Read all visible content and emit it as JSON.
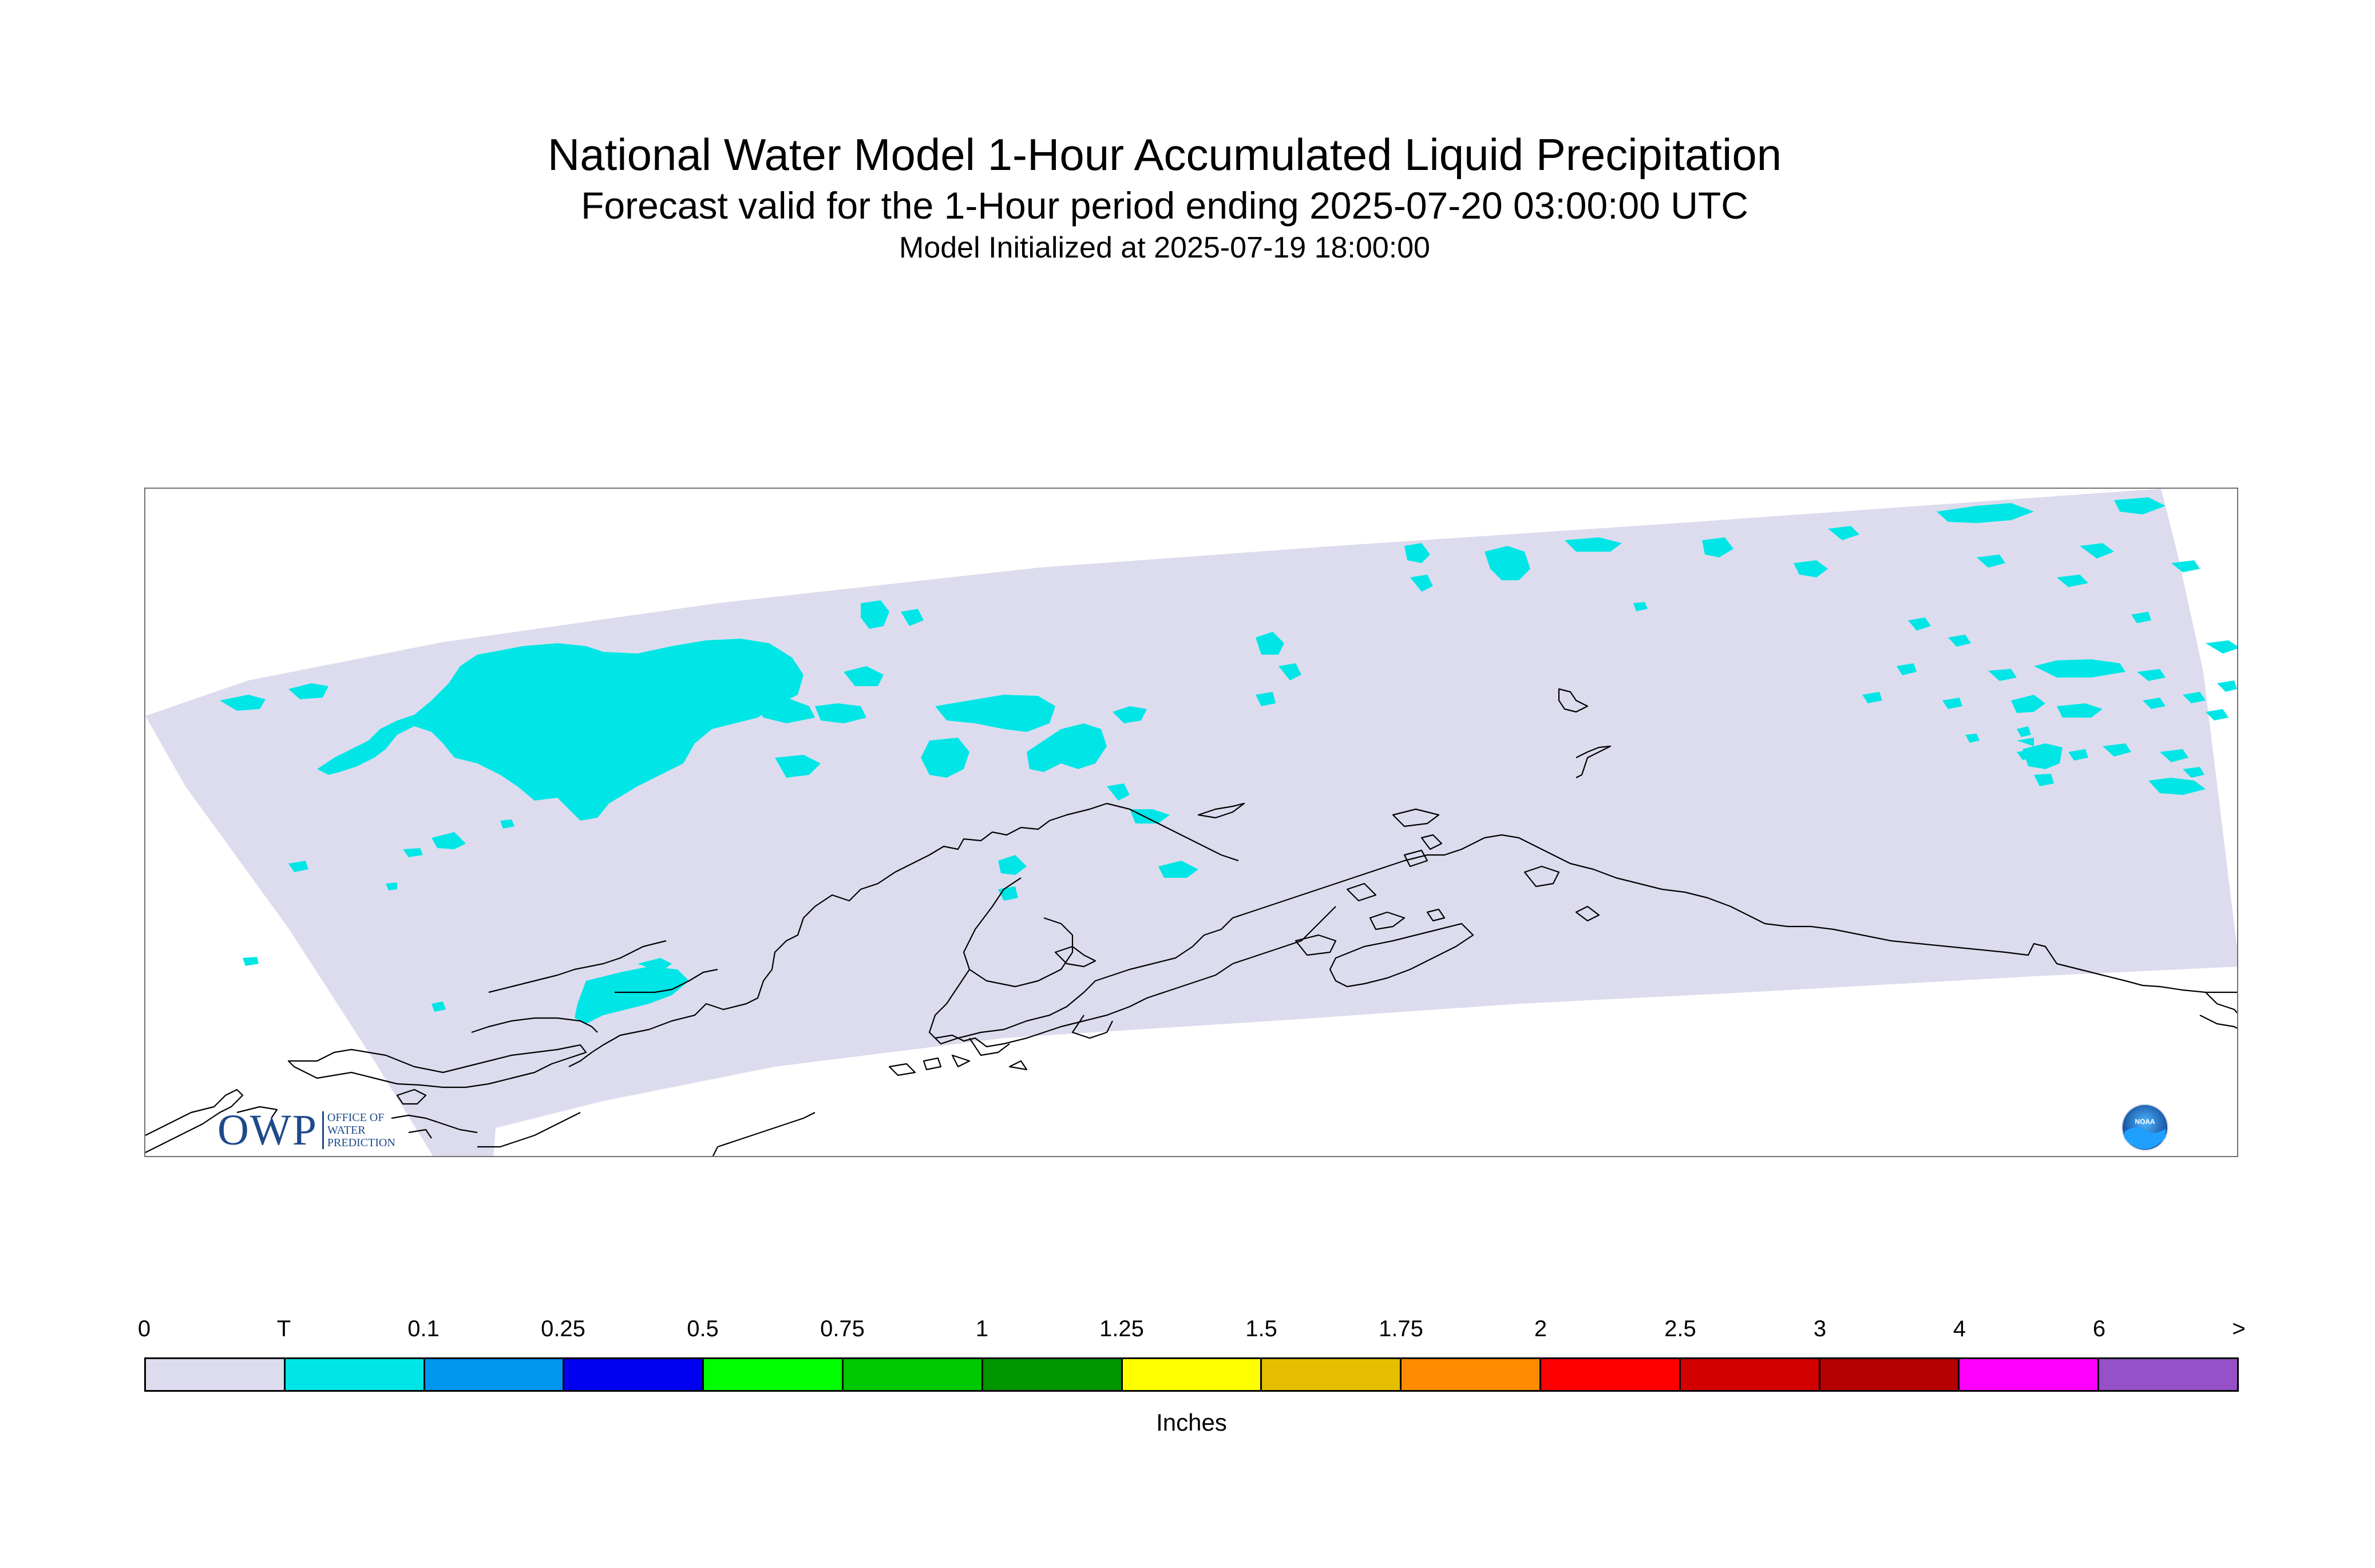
{
  "title": {
    "line1": "National Water Model 1-Hour Accumulated Liquid Precipitation",
    "line2": "Forecast valid for the 1-Hour period ending 2025-07-20 03:00:00 UTC",
    "line3": "Model Initialized at 2025-07-19 18:00:00"
  },
  "map": {
    "region": "Alaska",
    "domain_fill_color": "#dcdcee",
    "precip_color_trace": "#00e6e6",
    "coastline_color": "#000000"
  },
  "legend": {
    "unit": "Inches",
    "ticks": [
      "0",
      "T",
      "0.1",
      "0.25",
      "0.5",
      "0.75",
      "1",
      "1.25",
      "1.5",
      "1.75",
      "2",
      "2.5",
      "3",
      "4",
      "6",
      ">"
    ],
    "colors": [
      "#dcdcee",
      "#00e6e6",
      "#0096f0",
      "#0000f0",
      "#00ff00",
      "#00c800",
      "#009600",
      "#ffff00",
      "#e6be00",
      "#ff8c00",
      "#ff0000",
      "#d20000",
      "#b40000",
      "#ff00ff",
      "#9650c8"
    ]
  },
  "logos": {
    "owp": {
      "letters": "OWP",
      "sub": [
        "OFFICE OF",
        "WATER",
        "PREDICTION"
      ]
    },
    "noaa": {
      "text": "NOAA"
    }
  }
}
